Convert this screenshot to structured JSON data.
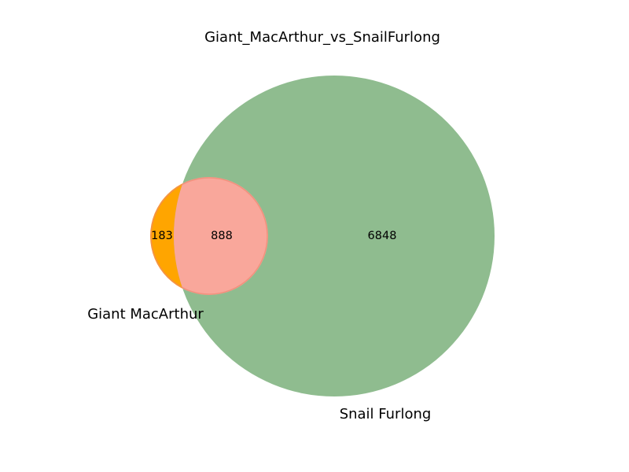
{
  "diagram": {
    "type": "venn2",
    "title": "Giant_MacArthur_vs_SnailFurlong",
    "sets": [
      {
        "name": "Giant MacArthur",
        "color": "#ffa500"
      },
      {
        "name": "Snail Furlong",
        "color": "#8fbc8f"
      }
    ],
    "regions": {
      "only_a": "183",
      "both": "888",
      "only_b": "6848"
    },
    "intersection_color": "#f9a79b",
    "intersection_edge_color": "#f08870"
  }
}
